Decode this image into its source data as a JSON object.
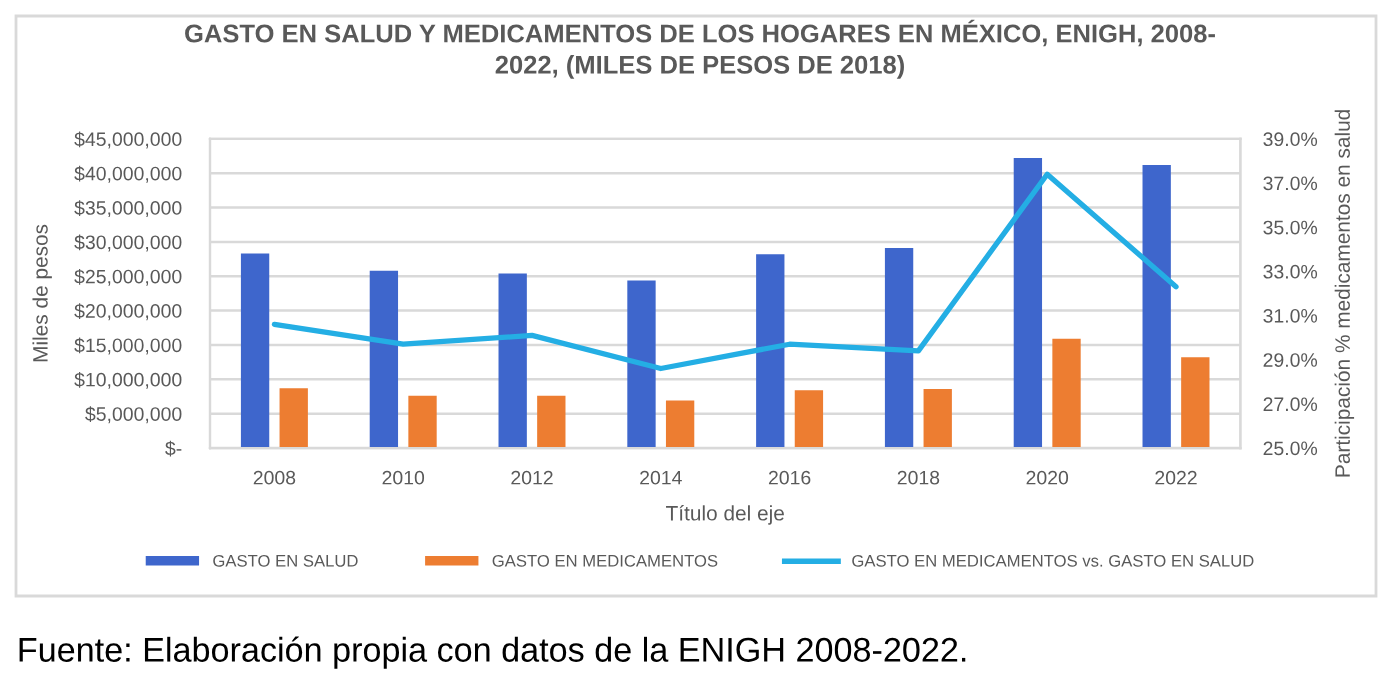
{
  "chart_data": {
    "type": "bar",
    "title": "GASTO EN SALUD Y MEDICAMENTOS DE LOS HOGARES EN MÉXICO, ENIGH, 2008-\n2022, (MILES DE PESOS DE 2018)",
    "xlabel": "Título del eje",
    "ylabel": "Miles de pesos",
    "y2label": "Participación % medicamentos en salud",
    "categories": [
      "2008",
      "2010",
      "2012",
      "2014",
      "2016",
      "2018",
      "2020",
      "2022"
    ],
    "series": [
      {
        "name": "GASTO EN SALUD",
        "color": "#3e66cc",
        "values": [
          28300000,
          25800000,
          25400000,
          24400000,
          28200000,
          29100000,
          42200000,
          41200000
        ]
      },
      {
        "name": "GASTO EN MEDICAMENTOS",
        "color": "#ed7d31",
        "values": [
          8700000,
          7600000,
          7600000,
          6900000,
          8400000,
          8600000,
          15900000,
          13200000
        ]
      },
      {
        "name": "GASTO EN MEDICAMENTOS vs. GASTO EN SALUD",
        "type": "line",
        "axis": "y2",
        "color": "#24aee4",
        "values": [
          30.6,
          29.7,
          30.1,
          28.6,
          29.7,
          29.4,
          37.4,
          32.3
        ]
      }
    ],
    "ylim": [
      0,
      45000000
    ],
    "yticks": [
      {
        "value": 0,
        "label": "$-"
      },
      {
        "value": 5000000,
        "label": "$5,000,000"
      },
      {
        "value": 10000000,
        "label": "$10,000,000"
      },
      {
        "value": 15000000,
        "label": "$15,000,000"
      },
      {
        "value": 20000000,
        "label": "$20,000,000"
      },
      {
        "value": 25000000,
        "label": "$25,000,000"
      },
      {
        "value": 30000000,
        "label": "$30,000,000"
      },
      {
        "value": 35000000,
        "label": "$35,000,000"
      },
      {
        "value": 40000000,
        "label": "$40,000,000"
      },
      {
        "value": 45000000,
        "label": "$45,000,000"
      }
    ],
    "y2lim": [
      25,
      39
    ],
    "y2ticks": [
      {
        "value": 25,
        "label": "25.0%"
      },
      {
        "value": 27,
        "label": "27.0%"
      },
      {
        "value": 29,
        "label": "29.0%"
      },
      {
        "value": 31,
        "label": "31.0%"
      },
      {
        "value": 33,
        "label": "33.0%"
      },
      {
        "value": 35,
        "label": "35.0%"
      },
      {
        "value": 37,
        "label": "37.0%"
      },
      {
        "value": 39,
        "label": "39.0%"
      }
    ],
    "grid": "y",
    "legend": "bottom",
    "annotations": [
      "Fuente: Elaboración propia con datos de la ENIGH 2008-2022."
    ]
  }
}
